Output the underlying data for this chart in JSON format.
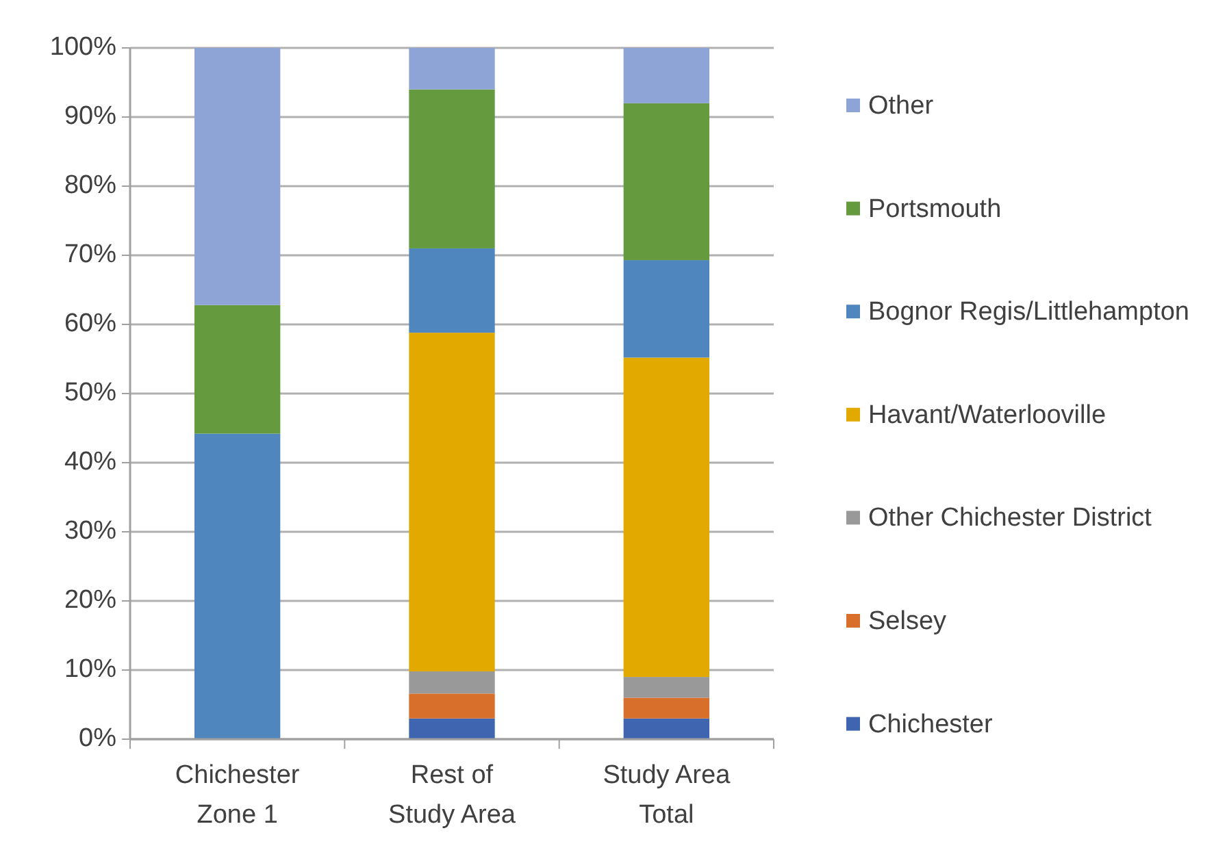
{
  "chart_data": {
    "type": "bar",
    "stacked": true,
    "categories": [
      "Chichester Zone 1",
      "Rest of Study Area",
      "Study Area Total"
    ],
    "series": [
      {
        "name": "Chichester",
        "color": "#3f64b0",
        "values": [
          0,
          3.0,
          3.0
        ]
      },
      {
        "name": "Selsey",
        "color": "#d8702c",
        "values": [
          0,
          3.6,
          3.0
        ]
      },
      {
        "name": "Other Chichester District",
        "color": "#999999",
        "values": [
          0,
          3.2,
          3.0
        ]
      },
      {
        "name": "Havant/Waterlooville",
        "color": "#e2aa00",
        "values": [
          0,
          49.0,
          46.2
        ]
      },
      {
        "name": "Bognor Regis/Littlehampton",
        "color": "#4f86be",
        "values": [
          44.2,
          12.2,
          14.1
        ]
      },
      {
        "name": "Portsmouth",
        "color": "#659a3e",
        "values": [
          18.6,
          23.0,
          22.7
        ]
      },
      {
        "name": "Other",
        "color": "#8ea3d6",
        "values": [
          37.2,
          6.0,
          8.0
        ]
      }
    ],
    "ylim": [
      0,
      100
    ],
    "yticks": [
      {
        "value": 0,
        "label": "0%"
      },
      {
        "value": 10,
        "label": "10%"
      },
      {
        "value": 20,
        "label": "20%"
      },
      {
        "value": 30,
        "label": "30%"
      },
      {
        "value": 40,
        "label": "40%"
      },
      {
        "value": 50,
        "label": "50%"
      },
      {
        "value": 60,
        "label": "60%"
      },
      {
        "value": 70,
        "label": "70%"
      },
      {
        "value": 80,
        "label": "80%"
      },
      {
        "value": 90,
        "label": "90%"
      },
      {
        "value": 100,
        "label": "100%"
      }
    ],
    "grid": "y",
    "legend": "right"
  }
}
